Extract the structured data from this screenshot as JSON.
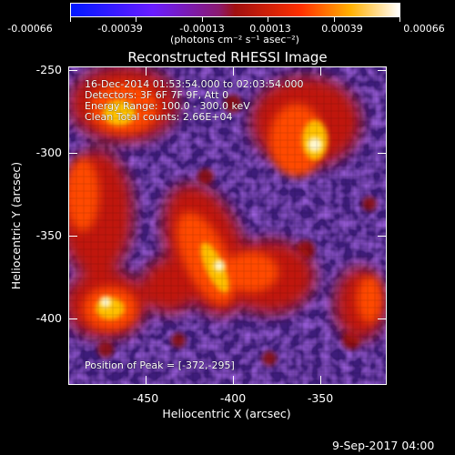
{
  "colorbar": {
    "ticks": [
      "-0.00066",
      "-0.00039",
      "-0.00013",
      "0.00013",
      "0.00039",
      "0.00066"
    ],
    "unit_label": "(photons cm⁻² s⁻¹ asec⁻²)",
    "colors": [
      "#0018ff",
      "#7a1cff",
      "#9a1010",
      "#ff3300",
      "#ffd000",
      "#ffffff"
    ]
  },
  "plot": {
    "title": "Reconstructed RHESSI Image",
    "xlabel": "Heliocentric X (arcsec)",
    "ylabel": "Heliocentric Y (arcsec)",
    "x_ticks": [
      "-450",
      "-400",
      "-350"
    ],
    "y_ticks": [
      "-250",
      "-300",
      "-350",
      "-400"
    ],
    "info_lines": [
      "16-Dec-2014 01:53:54.000 to 02:03:54.000",
      "Detectors: 3F 6F 7F 9F, Att 0",
      "Energy Range: 100.0 - 300.0 keV",
      "Clean     Total counts: 2.66E+04"
    ],
    "peak_text": "Position of Peak = [-372,-295]"
  },
  "footer": {
    "timestamp": "9-Sep-2017 04:00"
  }
}
